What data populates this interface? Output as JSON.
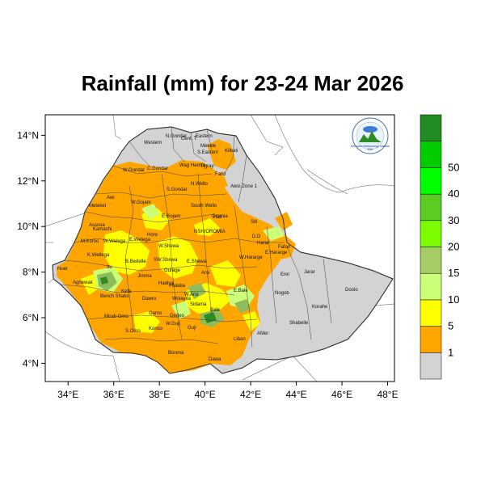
{
  "title": "Rainfall (mm) for 23-24 Mar 2026",
  "map": {
    "type": "rainfall-choropleth",
    "longitude_ticks": [
      "34°E",
      "36°E",
      "38°E",
      "40°E",
      "42°E",
      "44°E",
      "46°E",
      "48°E"
    ],
    "latitude_ticks": [
      "14°N",
      "12°N",
      "10°N",
      "8°N",
      "6°N",
      "4°N"
    ],
    "lon_range": [
      33,
      48.3
    ],
    "lat_range": [
      3.2,
      14.9
    ],
    "colors": {
      "no_rain": "#d3d3d3",
      "light": "#ffa500",
      "moderate": "#ffff00",
      "medium": "#ccff77",
      "heavy": "#8fbc5a",
      "very_heavy": "#2e8b22",
      "border": "#444444",
      "coast": "#888888"
    },
    "legend": {
      "labels": [
        "1",
        "5",
        "10",
        "15",
        "20",
        "30",
        "40",
        "50"
      ],
      "colors": [
        "#d3d3d3",
        "#ffa500",
        "#ffff00",
        "#ccff77",
        "#a6cc66",
        "#7cfc00",
        "#5ccc22",
        "#00ff00",
        "#00cc00",
        "#228b22"
      ]
    },
    "regions": [
      {
        "name": "Western"
      },
      {
        "name": "N.Gondar"
      },
      {
        "name": "Cent. T"
      },
      {
        "name": "Eastern"
      },
      {
        "name": "Mekele"
      },
      {
        "name": "S.Eastern"
      },
      {
        "name": "Kilbati"
      },
      {
        "name": "W.Gondar"
      },
      {
        "name": "C.Gondar"
      },
      {
        "name": "S.Gondar"
      },
      {
        "name": "Wag Hamra"
      },
      {
        "name": "Tigray"
      },
      {
        "name": "Fanti"
      },
      {
        "name": "N.Wello"
      },
      {
        "name": "Awsi Zone 1"
      },
      {
        "name": "Metekel"
      },
      {
        "name": "Awi"
      },
      {
        "name": "W.Gojam"
      },
      {
        "name": "E.Gojam"
      },
      {
        "name": "South Wello"
      },
      {
        "name": "Oromia"
      },
      {
        "name": "Hari"
      },
      {
        "name": "Assosa"
      },
      {
        "name": "Kamashi"
      },
      {
        "name": "Horo"
      },
      {
        "name": "NSH/OROMIA"
      },
      {
        "name": "Siti"
      },
      {
        "name": "D.D"
      },
      {
        "name": "M.Komo"
      },
      {
        "name": "W.Welega"
      },
      {
        "name": "E.Welega"
      },
      {
        "name": "W.Shewa"
      },
      {
        "name": "Harar"
      },
      {
        "name": "Fafan"
      },
      {
        "name": "K.Wellega"
      },
      {
        "name": "W.Hararge"
      },
      {
        "name": "E.Hararge"
      },
      {
        "name": "B.Bedelle"
      },
      {
        "name": "SW.Shewa"
      },
      {
        "name": "E.Shewa"
      },
      {
        "name": "Nuer"
      },
      {
        "name": "Itu"
      },
      {
        "name": "Jimma"
      },
      {
        "name": "Gurage"
      },
      {
        "name": "Arsi"
      },
      {
        "name": "Erer"
      },
      {
        "name": "Jarar"
      },
      {
        "name": "Agnewak"
      },
      {
        "name": "Hadiya"
      },
      {
        "name": "Kefa"
      },
      {
        "name": "Halaba"
      },
      {
        "name": "W.Arsi"
      },
      {
        "name": "E.Bale"
      },
      {
        "name": "Bench Shako"
      },
      {
        "name": "Dawro"
      },
      {
        "name": "Wolayita"
      },
      {
        "name": "Sidama"
      },
      {
        "name": "Nogob"
      },
      {
        "name": "Doolo"
      },
      {
        "name": "Mirab Omo"
      },
      {
        "name": "Gamo"
      },
      {
        "name": "Gedeo"
      },
      {
        "name": "Bale"
      },
      {
        "name": "Korahe"
      },
      {
        "name": "S.Omo"
      },
      {
        "name": "Konso"
      },
      {
        "name": "W.Guji"
      },
      {
        "name": "Guji"
      },
      {
        "name": "Shabelle"
      },
      {
        "name": "Afder"
      },
      {
        "name": "Liban"
      },
      {
        "name": "Borena"
      },
      {
        "name": "Dawa"
      }
    ],
    "logo": {
      "lines": [
        "Ethiopian Meteorology Institute",
        "EMI"
      ]
    }
  }
}
